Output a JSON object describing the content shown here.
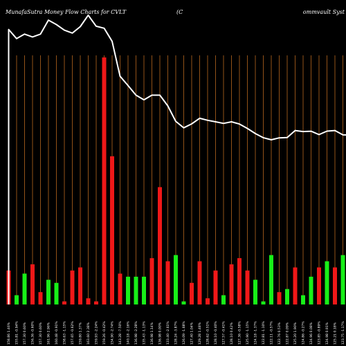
{
  "title": {
    "left": "MunafaSutra  Money Flow  Charts for CVLT",
    "middle": "(C",
    "right": "ommvault Syst"
  },
  "colors": {
    "background": "#000000",
    "grid_line": "#b8681e",
    "inflow": "#18f018",
    "outflow": "#f01818",
    "price_line": "#ffffff"
  },
  "chart_data": {
    "type": "bar",
    "title": "MunafaSutra  Money Flow  Charts for CVLT (Commvault Syst",
    "grid": "vertical lines",
    "categories": [
      "158.86 1.46%",
      "155.81 -0.94%",
      "157.30 0.60%",
      "156.36 -0.60%",
      "157.30 0.60%",
      "161.96 2.96%",
      "160.48 -0.91%",
      "158.63 -1.15%",
      "157.65 -0.62%",
      "159.80 1.37%",
      "163.60 2.38%",
      "159.93 -2.24%",
      "159.26 -0.42%",
      "154.90 -2.74%",
      "143.28 -7.50%",
      "140.18 -2.16%",
      "136.98 -2.28%",
      "135.43 -1.13%",
      "136.98 1.14%",
      "136.98 0.00%",
      "133.40 -2.61%",
      "128.24 -3.87%",
      "126.09 -1.68%",
      "127.40 1.04%",
      "129.28 1.48%",
      "128.62 -0.51%",
      "128.10 -0.40%",
      "127.57 -0.41%",
      "128.10 0.42%",
      "127.36 -0.58%",
      "125.90 -1.15%",
      "124.18 -1.37%",
      "122.81 -1.10%",
      "122.11 -0.57%",
      "122.76 0.53%",
      "122.87 0.09%",
      "125.20 1.90%",
      "124.86 -0.27%",
      "124.96 0.08%",
      "123.85 -0.89%",
      "124.98 0.91%",
      "125.21 0.18%",
      "123.75 -1.17%",
      "123.66 -0.07%"
    ],
    "values": [
      11,
      3,
      10,
      13,
      4,
      8,
      7,
      1,
      11,
      12,
      2,
      1,
      80,
      48,
      10,
      9,
      9,
      9,
      15,
      38,
      14,
      16,
      1,
      7,
      14,
      2,
      11,
      3,
      13,
      15,
      11,
      8,
      1,
      16,
      4,
      5,
      12,
      3,
      9,
      12,
      14,
      12,
      16,
      14
    ],
    "directions": [
      "out",
      "in",
      "in",
      "out",
      "out",
      "in",
      "in",
      "out",
      "out",
      "out",
      "out",
      "out",
      "out",
      "out",
      "out",
      "in",
      "in",
      "in",
      "out",
      "out",
      "out",
      "in",
      "in",
      "out",
      "out",
      "out",
      "out",
      "in",
      "out",
      "out",
      "out",
      "in",
      "in",
      "in",
      "out",
      "in",
      "out",
      "in",
      "in",
      "out",
      "in",
      "out",
      "in",
      "in"
    ],
    "price": [
      158.86,
      155.81,
      157.3,
      156.36,
      157.3,
      161.96,
      160.48,
      158.63,
      157.65,
      159.8,
      163.6,
      159.93,
      159.26,
      154.9,
      143.28,
      140.18,
      136.98,
      135.43,
      136.98,
      136.98,
      133.4,
      128.24,
      126.09,
      127.4,
      129.28,
      128.62,
      128.1,
      127.57,
      128.1,
      127.36,
      125.9,
      124.18,
      122.81,
      122.11,
      122.76,
      122.87,
      125.2,
      124.86,
      124.96,
      123.85,
      124.98,
      125.21,
      123.75,
      123.66
    ],
    "xlabel": "",
    "ylabel": ""
  }
}
